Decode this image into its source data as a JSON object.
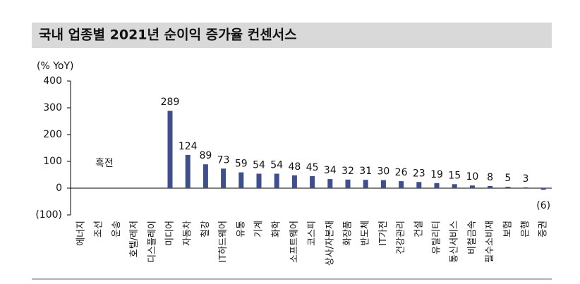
{
  "chart_data": {
    "type": "bar",
    "title": "국내 업종별 2021년 순이익 증가율 컨센서스",
    "y_label": "(% YoY)",
    "annotation": "흑전",
    "categories": [
      "에너지",
      "조선",
      "운송",
      "호텔/레저",
      "디스플레이",
      "미디어",
      "자동차",
      "철강",
      "IT하드웨어",
      "유통",
      "기계",
      "화학",
      "소프트웨어",
      "코스피",
      "상사/자본재",
      "화장품",
      "반도체",
      "IT가전",
      "건강관리",
      "건설",
      "유틸리티",
      "통신서비스",
      "비철금속",
      "필수소비재",
      "보험",
      "은행",
      "증권"
    ],
    "values": [
      null,
      null,
      null,
      null,
      null,
      289,
      124,
      89,
      73,
      59,
      54,
      54,
      48,
      45,
      34,
      32,
      31,
      30,
      26,
      23,
      19,
      15,
      10,
      8,
      5,
      3,
      -6
    ],
    "value_labels": [
      null,
      null,
      null,
      null,
      null,
      "289",
      "124",
      "89",
      "73",
      "59",
      "54",
      "54",
      "48",
      "45",
      "34",
      "32",
      "31",
      "30",
      "26",
      "23",
      "19",
      "15",
      "10",
      "8",
      "5",
      "3",
      "(6)"
    ],
    "color": "#3f4e8c",
    "ylim": [
      -100,
      400
    ],
    "yticks": [
      {
        "value": -100,
        "label": "(100)"
      },
      0,
      100,
      200,
      300,
      400
    ],
    "grid": false
  }
}
